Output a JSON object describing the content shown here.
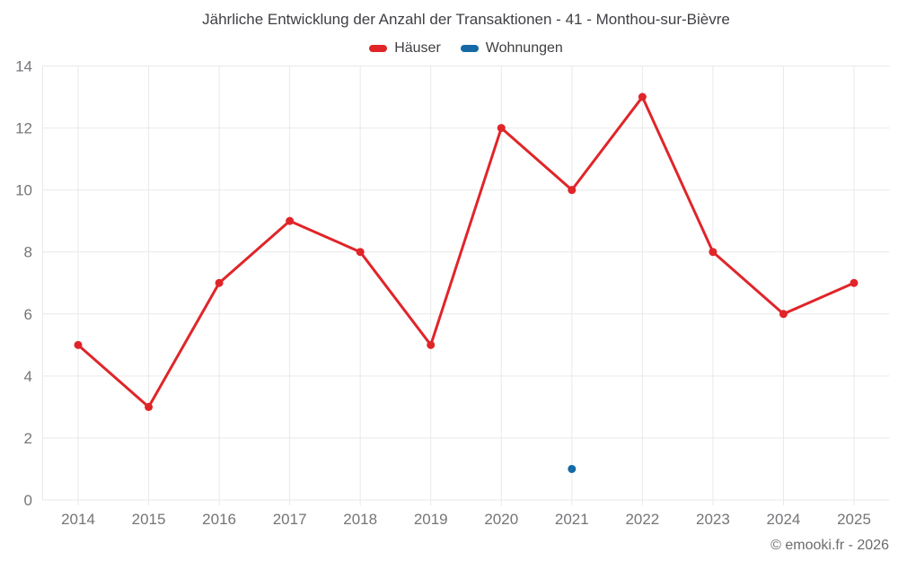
{
  "header": {
    "title": "Jährliche Entwicklung der Anzahl der Transaktionen - 41 - Monthou-sur-Bièvre"
  },
  "legend": {
    "items": [
      {
        "label": "Häuser",
        "color": "#e02529"
      },
      {
        "label": "Wohnungen",
        "color": "#1569a5"
      }
    ]
  },
  "footer": {
    "text": "© emooki.fr - 2026"
  },
  "colors": {
    "grid": "#e9e9e9",
    "axis_text": "#757579",
    "title_text": "#404045",
    "background": "#ffffff",
    "hauser_red": "#e02529",
    "wohnungen_blue": "#1569a5"
  },
  "chart_data": {
    "type": "line",
    "title": "Jährliche Entwicklung der Anzahl der Transaktionen - 41 - Monthou-sur-Bièvre",
    "categories": [
      "2014",
      "2015",
      "2016",
      "2017",
      "2018",
      "2019",
      "2020",
      "2021",
      "2022",
      "2023",
      "2024",
      "2025"
    ],
    "series": [
      {
        "name": "Häuser",
        "color": "#e02529",
        "values": [
          5,
          3,
          7,
          9,
          8,
          5,
          12,
          10,
          13,
          8,
          6,
          7
        ]
      },
      {
        "name": "Wohnungen",
        "color": "#1569a5",
        "values": [
          null,
          null,
          null,
          null,
          null,
          null,
          null,
          1,
          null,
          null,
          null,
          null
        ]
      }
    ],
    "xlabel": "",
    "ylabel": "",
    "ylim": [
      0,
      14
    ],
    "ytick_step": 2,
    "grid": true,
    "legend_position": "top"
  }
}
